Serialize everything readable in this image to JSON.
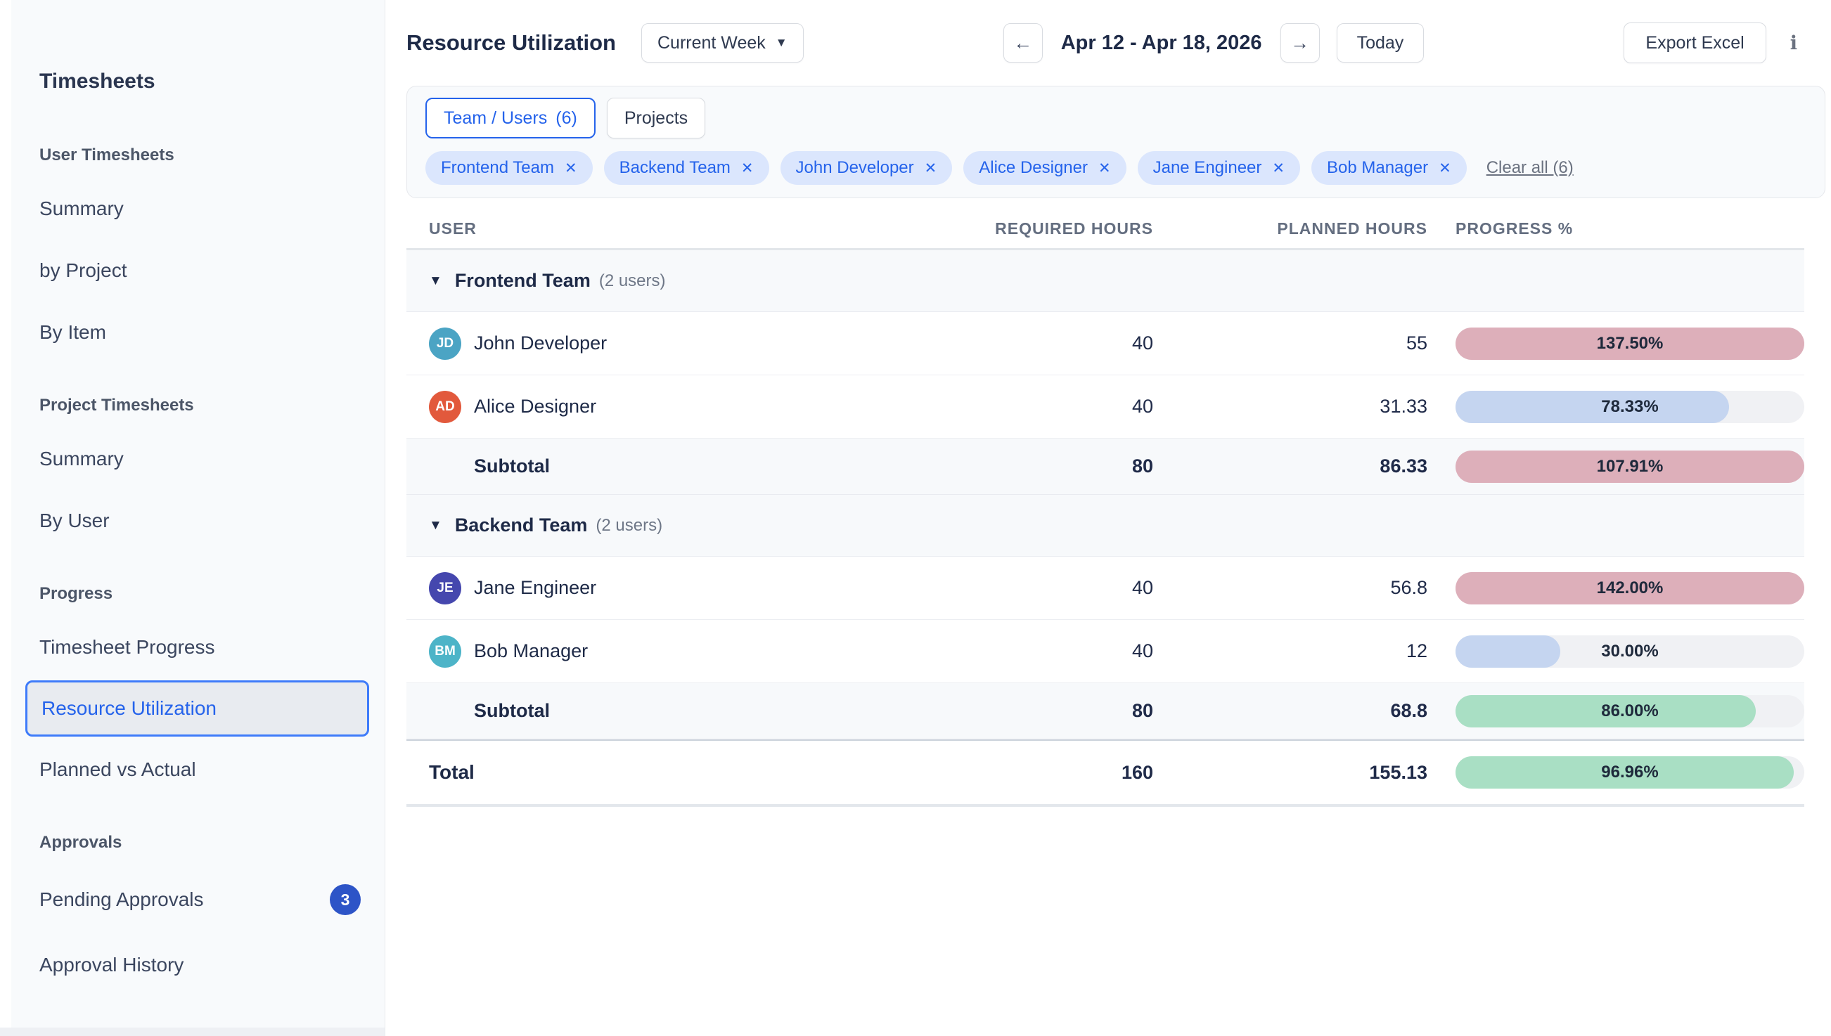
{
  "accent_color": "#2563eb",
  "sidebar": {
    "title": "Timesheets",
    "sections": [
      {
        "heading": "User Timesheets",
        "items": [
          {
            "label": "Summary"
          },
          {
            "label": "by Project"
          },
          {
            "label": "By Item"
          }
        ]
      },
      {
        "heading": "Project Timesheets",
        "items": [
          {
            "label": "Summary"
          },
          {
            "label": "By User"
          }
        ]
      },
      {
        "heading": "Progress",
        "items": [
          {
            "label": "Timesheet Progress"
          },
          {
            "label": "Resource Utilization",
            "selected": true
          },
          {
            "label": "Planned vs Actual"
          }
        ]
      },
      {
        "heading": "Approvals",
        "items": [
          {
            "label": "Pending Approvals",
            "badge": "3"
          },
          {
            "label": "Approval History"
          }
        ]
      }
    ]
  },
  "header": {
    "title": "Resource Utilization",
    "period_button": {
      "label": "Current Week",
      "caret": "▼"
    },
    "prev_arrow": "←",
    "date_range": "Apr 12 - Apr 18, 2026",
    "next_arrow": "→",
    "today_button": "Today",
    "export_button": "Export Excel",
    "info_icon": "i"
  },
  "filters": {
    "tabs": [
      {
        "label": "Team / Users",
        "count": "(6)",
        "active": true
      },
      {
        "label": "Projects",
        "active": false
      }
    ],
    "chips": [
      {
        "label": "Frontend Team"
      },
      {
        "label": "Backend Team"
      },
      {
        "label": "John Developer"
      },
      {
        "label": "Alice Designer"
      },
      {
        "label": "Jane Engineer"
      },
      {
        "label": "Bob Manager"
      }
    ],
    "chip_close": "✕",
    "clear_all": "Clear all (6)"
  },
  "table": {
    "columns": {
      "user": "USER",
      "required": "REQUIRED HOURS",
      "planned": "PLANNED HOURS",
      "progress": "PROGRESS %"
    },
    "groups": [
      {
        "collapse_icon": "▼",
        "name": "Frontend Team",
        "count": "(2 users)",
        "users": [
          {
            "avatar": {
              "initials": "JD",
              "color": "#4ba4c4"
            },
            "name": "John Developer",
            "required": "40",
            "planned": "55",
            "progress": {
              "label": "137.50%",
              "pct": 137.5,
              "fill": "#ddafba"
            }
          },
          {
            "avatar": {
              "initials": "AD",
              "color": "#e2593c"
            },
            "name": "Alice Designer",
            "required": "40",
            "planned": "31.33",
            "progress": {
              "label": "78.33%",
              "pct": 78.33,
              "fill": "#c5d5f0"
            }
          }
        ],
        "subtotal": {
          "label": "Subtotal",
          "required": "80",
          "planned": "86.33",
          "progress": {
            "label": "107.91%",
            "pct": 107.91,
            "fill": "#ddafba"
          }
        }
      },
      {
        "collapse_icon": "▼",
        "name": "Backend Team",
        "count": "(2 users)",
        "users": [
          {
            "avatar": {
              "initials": "JE",
              "color": "#4547ae"
            },
            "name": "Jane Engineer",
            "required": "40",
            "planned": "56.8",
            "progress": {
              "label": "142.00%",
              "pct": 142,
              "fill": "#ddafba"
            }
          },
          {
            "avatar": {
              "initials": "BM",
              "color": "#4db4c8"
            },
            "name": "Bob Manager",
            "required": "40",
            "planned": "12",
            "progress": {
              "label": "30.00%",
              "pct": 30,
              "fill": "#c5d5f0"
            }
          }
        ],
        "subtotal": {
          "label": "Subtotal",
          "required": "80",
          "planned": "68.8",
          "progress": {
            "label": "86.00%",
            "pct": 86,
            "fill": "#a9dfc4"
          }
        }
      }
    ],
    "total": {
      "label": "Total",
      "required": "160",
      "planned": "155.13",
      "progress": {
        "label": "96.96%",
        "pct": 96.96,
        "fill": "#a9dfc4"
      }
    }
  }
}
